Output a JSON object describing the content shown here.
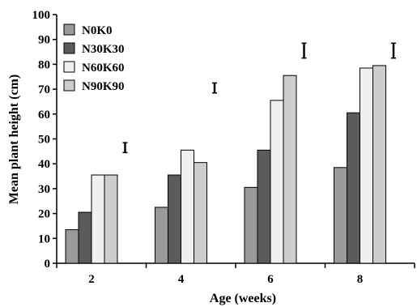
{
  "chart_data": {
    "type": "bar",
    "title": "",
    "xlabel": "Age (weeks)",
    "ylabel": "Mean plant height (cm)",
    "categories": [
      "2",
      "4",
      "6",
      "8"
    ],
    "ylim": [
      0,
      100
    ],
    "yticks": [
      0,
      10,
      20,
      30,
      40,
      50,
      60,
      70,
      80,
      90,
      100
    ],
    "grid": false,
    "legend_position": "top-left",
    "series": [
      {
        "name": "N0K0",
        "values": [
          13.5,
          22.5,
          30.5,
          38.5
        ],
        "color": "#9a9a9a"
      },
      {
        "name": "N30K30",
        "values": [
          20.5,
          35.5,
          45.5,
          60.5
        ],
        "color": "#5b5b5b"
      },
      {
        "name": "N60K60",
        "values": [
          35.5,
          45.5,
          65.5,
          78.5
        ],
        "color": "#f0f0f0"
      },
      {
        "name": "N90K90",
        "values": [
          35.5,
          40.5,
          75.5,
          79.5
        ],
        "color": "#cdcdcd"
      }
    ],
    "error_bars": [
      {
        "category": "2",
        "low": 44.5,
        "high": 48.5
      },
      {
        "category": "4",
        "low": 68.5,
        "high": 72.5
      },
      {
        "category": "6",
        "low": 82.5,
        "high": 88.5
      },
      {
        "category": "8",
        "low": 82.5,
        "high": 88.5
      }
    ]
  }
}
